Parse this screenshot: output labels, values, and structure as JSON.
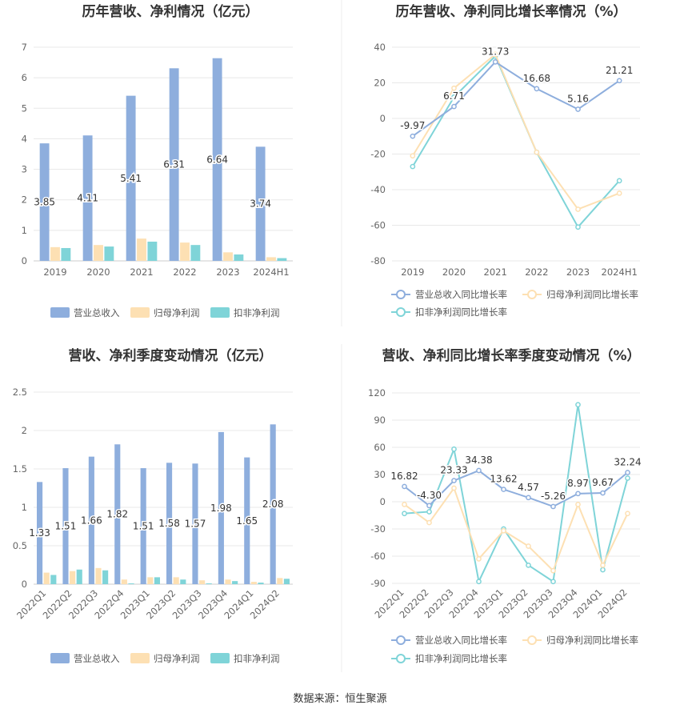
{
  "source": "数据来源：恒生聚源",
  "chart_data": [
    {
      "type": "bar",
      "title": "历年营收、净利情况（亿元）",
      "categories": [
        "2019",
        "2020",
        "2021",
        "2022",
        "2023",
        "2024H1"
      ],
      "ylim": [
        0,
        7
      ],
      "yticks": [
        0,
        1,
        2,
        3,
        4,
        5,
        6,
        7
      ],
      "series": [
        {
          "name": "营业总收入",
          "values": [
            3.85,
            4.11,
            5.41,
            6.31,
            6.64,
            3.74
          ],
          "color": "#8eaedd",
          "labels": [
            "3.85",
            "4.11",
            "5.41",
            "6.31",
            "6.64",
            "3.74"
          ]
        },
        {
          "name": "归母净利润",
          "values": [
            0.45,
            0.52,
            0.73,
            0.6,
            0.28,
            0.12
          ],
          "color": "#fde0b3"
        },
        {
          "name": "扣非净利润",
          "values": [
            0.42,
            0.47,
            0.63,
            0.52,
            0.21,
            0.09
          ],
          "color": "#7fd4d8"
        }
      ],
      "legend": "bottom",
      "grid": true
    },
    {
      "type": "line",
      "title": "历年营收、净利同比增长率情况（%）",
      "categories": [
        "2019",
        "2020",
        "2021",
        "2022",
        "2023",
        "2024H1"
      ],
      "ylim": [
        -80,
        40
      ],
      "yticks": [
        -80,
        -60,
        -40,
        -20,
        0,
        20,
        40
      ],
      "series": [
        {
          "name": "营业总收入同比增长率",
          "values": [
            -9.97,
            6.71,
            31.73,
            16.68,
            5.16,
            21.21
          ],
          "color": "#8eaedd",
          "labels": [
            "-9.97",
            "6.71",
            "31.73",
            "16.68",
            "5.16",
            "21.21"
          ]
        },
        {
          "name": "归母净利润同比增长率",
          "values": [
            -21,
            17,
            36,
            -19,
            -51,
            -42
          ],
          "color": "#fde0b3"
        },
        {
          "name": "扣非净利润同比增长率",
          "values": [
            -27,
            12,
            35,
            -19,
            -61,
            -35
          ],
          "color": "#7fd4d8"
        }
      ],
      "legend": "bottom",
      "grid": true
    },
    {
      "type": "bar",
      "title": "营收、净利季度变动情况（亿元）",
      "categories": [
        "2022Q1",
        "2022Q2",
        "2022Q3",
        "2022Q4",
        "2023Q1",
        "2023Q2",
        "2023Q3",
        "2023Q4",
        "2024Q1",
        "2024Q2"
      ],
      "ylim": [
        0,
        2.5
      ],
      "yticks": [
        0,
        0.5,
        1,
        1.5,
        2,
        2.5
      ],
      "series": [
        {
          "name": "营业总收入",
          "values": [
            1.33,
            1.51,
            1.66,
            1.82,
            1.51,
            1.58,
            1.57,
            1.98,
            1.65,
            2.08
          ],
          "color": "#8eaedd",
          "labels": [
            "1.33",
            "1.51",
            "1.66",
            "1.82",
            "1.51",
            "1.58",
            "1.57",
            "1.98",
            "1.65",
            "2.08"
          ]
        },
        {
          "name": "归母净利润",
          "values": [
            0.15,
            0.17,
            0.21,
            0.06,
            0.09,
            0.09,
            0.05,
            0.06,
            0.03,
            0.08
          ],
          "color": "#fde0b3"
        },
        {
          "name": "扣非净利润",
          "values": [
            0.12,
            0.19,
            0.18,
            0.01,
            0.09,
            0.06,
            0.01,
            0.04,
            0.02,
            0.07
          ],
          "color": "#7fd4d8"
        }
      ],
      "legend": "bottom",
      "grid": true
    },
    {
      "type": "line",
      "title": "营收、净利同比增长率季度变动情况（%）",
      "categories": [
        "2022Q1",
        "2022Q2",
        "2022Q3",
        "2022Q4",
        "2023Q1",
        "2023Q2",
        "2023Q3",
        "2023Q4",
        "2024Q1",
        "2024Q2"
      ],
      "ylim": [
        -90,
        120
      ],
      "yticks": [
        -90,
        -60,
        -30,
        0,
        30,
        60,
        90,
        120
      ],
      "series": [
        {
          "name": "营业总收入同比增长率",
          "values": [
            16.82,
            -4.3,
            23.33,
            34.38,
            13.62,
            4.57,
            -5.26,
            8.97,
            9.67,
            32.24
          ],
          "color": "#8eaedd",
          "labels": [
            "16.82",
            "-4.30",
            "23.33",
            "34.38",
            "13.62",
            "4.57",
            "-5.26",
            "8.97",
            "9.67",
            "32.24"
          ]
        },
        {
          "name": "归母净利润同比增长率",
          "values": [
            -3,
            -23,
            15,
            -63,
            -32,
            -49,
            -76,
            -3,
            -70,
            -13
          ],
          "color": "#fde0b3"
        },
        {
          "name": "扣非净利润同比增长率",
          "values": [
            -13,
            -11,
            58,
            -88,
            -30,
            -70,
            -88,
            107,
            -75,
            26
          ],
          "color": "#7fd4d8"
        }
      ],
      "legend": "bottom",
      "grid": true
    }
  ]
}
